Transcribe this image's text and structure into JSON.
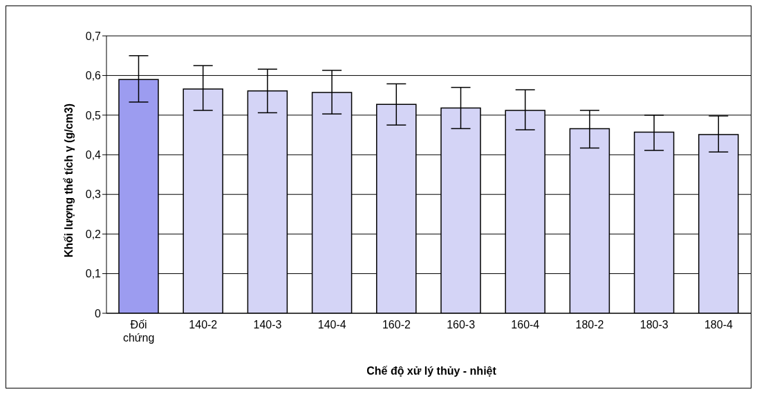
{
  "chart_data": {
    "type": "bar",
    "xlabel": "Chế độ xử lý thủy - nhiệt",
    "ylabel": "Khối lượng thể tích γ (g/cm3)",
    "categories": [
      "Đối chứng",
      "140-2",
      "140-3",
      "140-4",
      "160-2",
      "160-3",
      "160-4",
      "180-2",
      "180-3",
      "180-4"
    ],
    "values": [
      0.59,
      0.566,
      0.561,
      0.557,
      0.527,
      0.518,
      0.512,
      0.466,
      0.457,
      0.451
    ],
    "colors": [
      "#9c9cf0",
      "#d4d4f6",
      "#d4d4f6",
      "#d4d4f6",
      "#d4d4f6",
      "#d4d4f6",
      "#d4d4f6",
      "#d4d4f6",
      "#d4d4f6",
      "#d4d4f6"
    ],
    "errors": [
      [
        0.533,
        0.65
      ],
      [
        0.512,
        0.625
      ],
      [
        0.506,
        0.616
      ],
      [
        0.503,
        0.613
      ],
      [
        0.475,
        0.579
      ],
      [
        0.466,
        0.57
      ],
      [
        0.463,
        0.564
      ],
      [
        0.417,
        0.512
      ],
      [
        0.411,
        0.5
      ],
      [
        0.407,
        0.498
      ]
    ],
    "ylim": [
      0,
      0.7
    ],
    "yticks": [
      0,
      {
        "value": 0.1,
        "label": "0,1"
      },
      {
        "value": 0.2,
        "label": "0,2"
      },
      {
        "value": 0.3,
        "label": "0,3"
      },
      {
        "value": 0.4,
        "label": "0,4"
      },
      {
        "value": 0.5,
        "label": "0,5"
      },
      {
        "value": 0.6,
        "label": "0,6"
      },
      {
        "value": 0.7,
        "label": "0,7"
      }
    ],
    "grid": "y",
    "legend": false
  }
}
